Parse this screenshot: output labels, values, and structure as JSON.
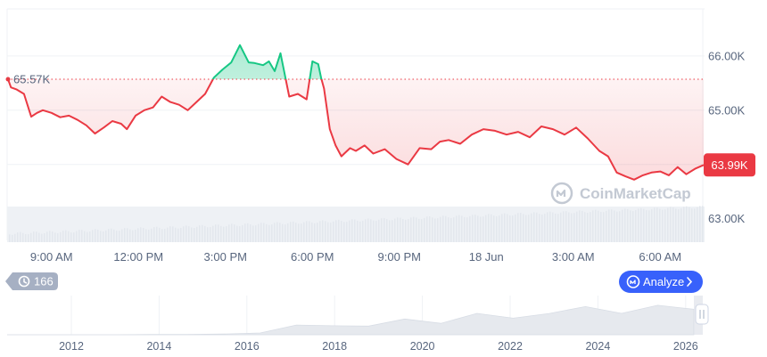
{
  "chart_data": {
    "type": "line",
    "baseline": {
      "value": 65570,
      "label": "65.57K"
    },
    "current_price": {
      "value": 63990,
      "label": "63.99K"
    },
    "ylim": [
      62600,
      66900
    ],
    "y_ticks": [
      {
        "value": 66000,
        "label": "66.00K"
      },
      {
        "value": 65000,
        "label": "65.00K"
      },
      {
        "value": 64000,
        "label": ""
      },
      {
        "value": 63000,
        "label": "63.00K"
      }
    ],
    "x_ticks": [
      {
        "h": 1.5,
        "label": "9:00 AM"
      },
      {
        "h": 4.5,
        "label": "12:00 PM"
      },
      {
        "h": 7.5,
        "label": "3:00 PM"
      },
      {
        "h": 10.5,
        "label": "6:00 PM"
      },
      {
        "h": 13.5,
        "label": "9:00 PM"
      },
      {
        "h": 16.5,
        "label": "18 Jun"
      },
      {
        "h": 19.5,
        "label": "3:00 AM"
      },
      {
        "h": 22.5,
        "label": "6:00 AM"
      }
    ],
    "series": [
      {
        "x": [
          0,
          0.1,
          0.3,
          0.55,
          0.8,
          1.0,
          1.2,
          1.5,
          1.8,
          2.1,
          2.4,
          2.7,
          3.0,
          3.3,
          3.6,
          3.9,
          4.1,
          4.4,
          4.7,
          5.0,
          5.3,
          5.6,
          5.9,
          6.2,
          6.5,
          6.8,
          7.1,
          7.4,
          7.7,
          8.0,
          8.3,
          8.5,
          8.8,
          9.0,
          9.2,
          9.4,
          9.7,
          10.0,
          10.3,
          10.5,
          10.7,
          10.8,
          10.9,
          11.1,
          11.3,
          11.5,
          11.6,
          11.8,
          12.0,
          12.3,
          12.6,
          13.0,
          13.4,
          13.8,
          14.2,
          14.6,
          14.9,
          15.2,
          15.6,
          16.0,
          16.4,
          16.8,
          17.2,
          17.6,
          18.0,
          18.4,
          18.8,
          19.2,
          19.6,
          20.0,
          20.4,
          20.7,
          21.0,
          21.3,
          21.6,
          21.9,
          22.2,
          22.5,
          22.8,
          23.1,
          23.4,
          23.7,
          24.0
        ],
        "y": [
          65570,
          65420,
          65380,
          65300,
          64880,
          64950,
          65000,
          64950,
          64870,
          64900,
          64820,
          64720,
          64570,
          64680,
          64800,
          64750,
          64650,
          64900,
          65000,
          65050,
          65250,
          65150,
          65100,
          65000,
          65150,
          65300,
          65600,
          65750,
          65880,
          66200,
          65880,
          65870,
          65830,
          65900,
          65720,
          66050,
          65250,
          65300,
          65200,
          65900,
          65850,
          65600,
          65400,
          64650,
          64350,
          64150,
          64200,
          64300,
          64250,
          64350,
          64200,
          64280,
          64100,
          64000,
          64300,
          64280,
          64420,
          64450,
          64380,
          64550,
          64650,
          64620,
          64550,
          64600,
          64500,
          64700,
          64650,
          64550,
          64680,
          64480,
          64250,
          64150,
          63850,
          63780,
          63720,
          63800,
          63850,
          63870,
          63800,
          63950,
          63820,
          63920,
          63990
        ]
      }
    ],
    "volume_band": true,
    "navigator": {
      "years": [
        "2012",
        "2014",
        "2016",
        "2018",
        "2020",
        "2022",
        "2024",
        "2026"
      ],
      "profile": [
        0,
        0,
        0,
        0,
        0.01,
        0.01,
        0.02,
        0.05,
        0.25,
        0.3,
        0.2,
        0.45,
        0.35,
        0.55,
        0.5,
        0.6,
        0.75,
        0.65,
        0.8,
        0.7
      ]
    },
    "controls": {
      "history_count": "166",
      "analyze_label": "Analyze"
    },
    "watermark": "CoinMarketCap",
    "colors": {
      "up": "#16c784",
      "down": "#ea3943",
      "text": "#58667e",
      "grid": "#eff2f5",
      "pill_history": "#a6b0c3",
      "pill_analyze": "#3861fb"
    }
  }
}
